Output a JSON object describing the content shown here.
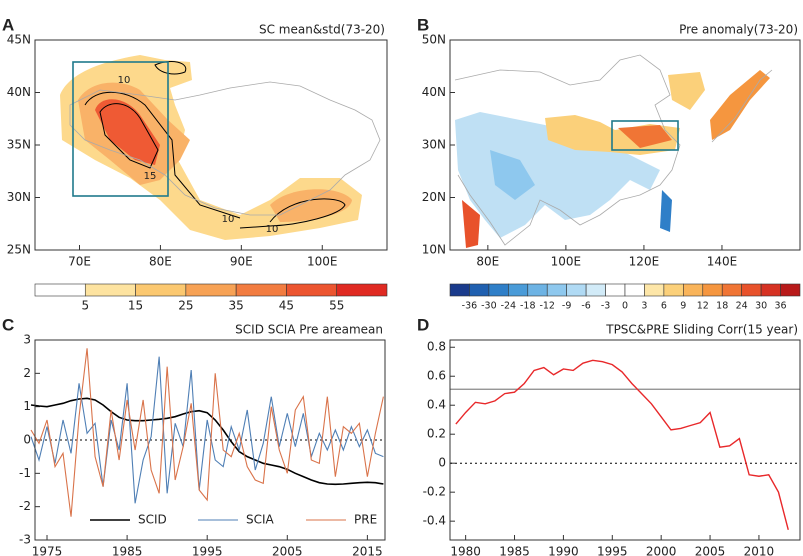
{
  "chart_data": [
    {
      "type": "map",
      "letter": "A",
      "title": "SC mean&std(73-20)",
      "xlim": [
        64.5,
        108
      ],
      "ylim": [
        25,
        45
      ],
      "xticks": [
        {
          "value": 70,
          "label": "70E"
        },
        {
          "value": 80,
          "label": "80E"
        },
        {
          "value": 90,
          "label": "90E"
        },
        {
          "value": 100,
          "label": "100E"
        }
      ],
      "yticks": [
        {
          "value": 25,
          "label": "25N"
        },
        {
          "value": 30,
          "label": "30N"
        },
        {
          "value": 35,
          "label": "35N"
        },
        {
          "value": 40,
          "label": "40N"
        },
        {
          "value": 45,
          "label": "45N"
        }
      ],
      "contour_labels": [
        10,
        15,
        10,
        10
      ],
      "colorbar": {
        "levels": [
          5,
          15,
          25,
          35,
          45,
          55
        ],
        "colors": [
          "#ffffff",
          "#fde3a0",
          "#fbc870",
          "#f7a255",
          "#f27c40",
          "#ec5530",
          "#e02a22"
        ]
      }
    },
    {
      "type": "map",
      "letter": "B",
      "title": "Pre anomaly(73-20)",
      "xlim": [
        70.3,
        160
      ],
      "ylim": [
        10,
        50
      ],
      "xticks": [
        {
          "value": 80,
          "label": "80E"
        },
        {
          "value": 100,
          "label": "100E"
        },
        {
          "value": 120,
          "label": "120E"
        },
        {
          "value": 140,
          "label": "140E"
        }
      ],
      "yticks": [
        {
          "value": 10,
          "label": "10N"
        },
        {
          "value": 20,
          "label": "20N"
        },
        {
          "value": 30,
          "label": "30N"
        },
        {
          "value": 40,
          "label": "40N"
        },
        {
          "value": 50,
          "label": "50N"
        }
      ],
      "colorbar": {
        "levels": [
          -36,
          -30,
          -24,
          -18,
          -12,
          -9,
          -6,
          -3,
          0,
          3,
          6,
          9,
          12,
          18,
          24,
          30,
          36
        ],
        "colors": [
          "#1a3b8c",
          "#2060b0",
          "#2f7fc8",
          "#4a9bd8",
          "#6db3e4",
          "#8ec8ee",
          "#b0daf4",
          "#d2ebf8",
          "#ffffff",
          "#ffffff",
          "#fde6a8",
          "#fbd07a",
          "#f9b45a",
          "#f5963f",
          "#f07535",
          "#e8522b",
          "#d63223",
          "#b81a1a"
        ]
      }
    },
    {
      "type": "line",
      "letter": "C",
      "title": "SCID SCIA Pre areamean",
      "xlim": [
        1973.5,
        2017.2
      ],
      "ylim": [
        -3,
        3
      ],
      "xticks": [
        1975,
        1985,
        1995,
        2005,
        2015
      ],
      "yticks": [
        -3,
        -2,
        -1,
        0,
        1,
        2,
        3
      ],
      "zero_line": true,
      "x": [
        1973,
        1974,
        1975,
        1976,
        1977,
        1978,
        1979,
        1980,
        1981,
        1982,
        1983,
        1984,
        1985,
        1986,
        1987,
        1988,
        1989,
        1990,
        1991,
        1992,
        1993,
        1994,
        1995,
        1996,
        1997,
        1998,
        1999,
        2000,
        2001,
        2002,
        2003,
        2004,
        2005,
        2006,
        2007,
        2008,
        2009,
        2010,
        2011,
        2012,
        2013,
        2014,
        2015,
        2016,
        2017
      ],
      "series": [
        {
          "name": "SCID",
          "color": "#000000",
          "width": 1.6,
          "values": [
            1.05,
            1.02,
            1.0,
            1.05,
            1.1,
            1.18,
            1.23,
            1.25,
            1.2,
            1.05,
            0.85,
            0.68,
            0.6,
            0.58,
            0.58,
            0.6,
            0.62,
            0.65,
            0.7,
            0.78,
            0.85,
            0.88,
            0.82,
            0.6,
            0.3,
            -0.05,
            -0.35,
            -0.5,
            -0.6,
            -0.7,
            -0.75,
            -0.8,
            -0.88,
            -1.0,
            -1.1,
            -1.2,
            -1.28,
            -1.32,
            -1.33,
            -1.32,
            -1.3,
            -1.28,
            -1.27,
            -1.28,
            -1.32
          ]
        },
        {
          "name": "SCIA",
          "color": "#4f7fb5",
          "width": 1.1,
          "values": [
            0.1,
            -0.6,
            0.4,
            -0.7,
            0.6,
            -0.4,
            1.7,
            0.2,
            0.5,
            -1.4,
            0.6,
            -0.3,
            1.7,
            -1.9,
            -0.6,
            0.1,
            2.5,
            -1.6,
            0.5,
            -0.2,
            2.1,
            -1.5,
            0.6,
            -0.6,
            -0.8,
            0.4,
            -0.3,
            0.9,
            -0.9,
            -0.1,
            1.3,
            -0.2,
            0.8,
            -0.2,
            0.8,
            -0.5,
            0.2,
            -0.3,
            0.3,
            -0.3,
            0.4,
            -0.2,
            0.3,
            -0.4,
            -0.5
          ]
        },
        {
          "name": "PRE",
          "color": "#d9734a",
          "width": 1.1,
          "values": [
            0.3,
            -0.1,
            0.6,
            -0.8,
            -0.4,
            -2.3,
            0.7,
            2.75,
            -0.5,
            -1.4,
            0.9,
            -0.6,
            1.2,
            -0.3,
            1.2,
            -0.9,
            -1.6,
            2.2,
            -1.2,
            -0.2,
            1.1,
            -1.5,
            -1.8,
            2.0,
            -0.3,
            -0.5,
            0.2,
            -0.8,
            -1.2,
            -1.3,
            1.0,
            -0.3,
            -1.0,
            0.9,
            1.3,
            -0.6,
            -0.7,
            1.3,
            -1.1,
            0.4,
            0.2,
            0.5,
            -1.1,
            0.2,
            1.3
          ]
        }
      ]
    },
    {
      "type": "line",
      "letter": "D",
      "title": "TPSC&PRE Sliding Corr(15 year)",
      "xlim": [
        1978.4,
        2014.2
      ],
      "ylim": [
        -0.53,
        0.85
      ],
      "xticks": [
        1980,
        1985,
        1990,
        1995,
        2000,
        2005,
        2010
      ],
      "yticks": [
        -0.4,
        -0.2,
        0,
        0.2,
        0.4,
        0.6,
        0.8
      ],
      "zero_line": true,
      "hline": {
        "value": 0.51,
        "color": "#888888"
      },
      "x": [
        1979,
        1980,
        1981,
        1982,
        1983,
        1984,
        1985,
        1986,
        1987,
        1988,
        1989,
        1990,
        1991,
        1992,
        1993,
        1994,
        1995,
        1996,
        1997,
        1998,
        1999,
        2000,
        2001,
        2002,
        2003,
        2004,
        2005,
        2006,
        2007,
        2008,
        2009,
        2010,
        2011,
        2012,
        2013
      ],
      "series": [
        {
          "color": "#e8282a",
          "width": 1.4,
          "values": [
            0.27,
            0.35,
            0.42,
            0.41,
            0.43,
            0.48,
            0.49,
            0.55,
            0.64,
            0.66,
            0.61,
            0.65,
            0.64,
            0.69,
            0.71,
            0.7,
            0.68,
            0.63,
            0.55,
            0.48,
            0.41,
            0.32,
            0.23,
            0.24,
            0.26,
            0.28,
            0.35,
            0.11,
            0.12,
            0.17,
            -0.08,
            -0.09,
            -0.08,
            -0.2,
            -0.46
          ]
        }
      ]
    }
  ]
}
